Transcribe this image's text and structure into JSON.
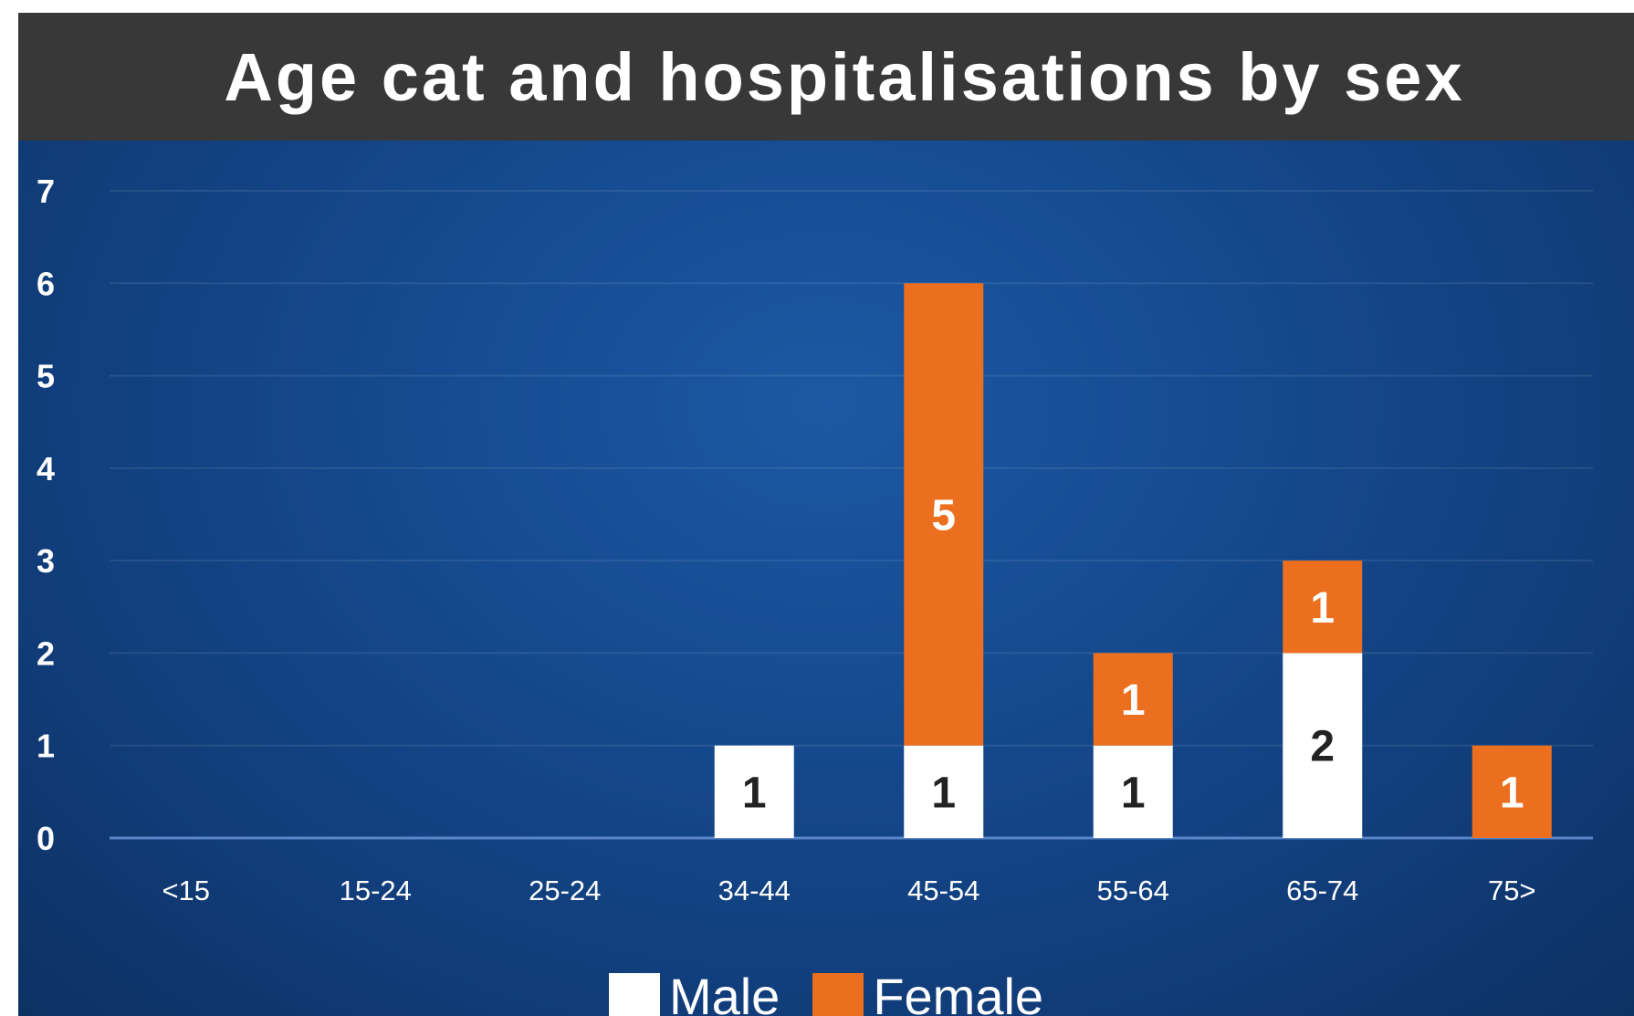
{
  "chart_data": {
    "type": "bar",
    "stacked": true,
    "title": "Age cat and hospitalisations by sex",
    "categories": [
      "<15",
      "15-24",
      "25-24",
      "34-44",
      "45-54",
      "55-64",
      "65-74",
      "75>"
    ],
    "series": [
      {
        "name": "Male",
        "values": [
          0,
          0,
          0,
          1,
          1,
          1,
          2,
          0
        ],
        "color": "#ffffff",
        "label_color": "#222222"
      },
      {
        "name": "Female",
        "values": [
          0,
          0,
          0,
          0,
          5,
          1,
          1,
          1
        ],
        "color": "#ec6f1f",
        "label_color": "#ffffff"
      }
    ],
    "yticks": [
      "0",
      "1",
      "2",
      "3",
      "4",
      "5",
      "6",
      "7"
    ],
    "ylim": [
      0,
      7
    ],
    "grid": true,
    "legend": "bottom-center"
  },
  "colors": {
    "title_bar": "#383838",
    "plot_background": "#154b90",
    "text": "#ffffff"
  }
}
